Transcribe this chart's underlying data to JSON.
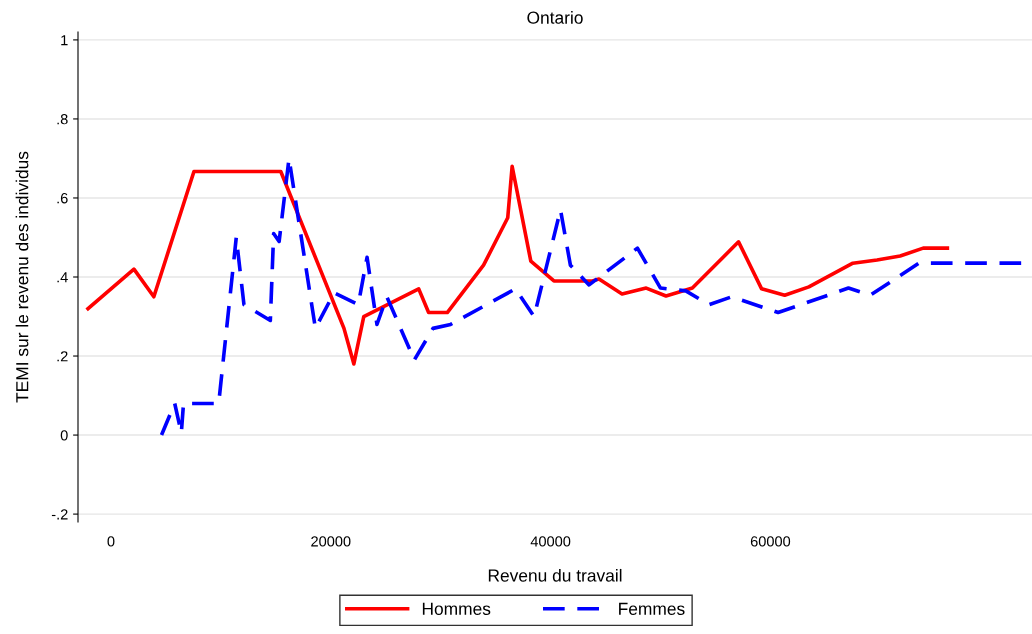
{
  "chart_data": {
    "type": "line",
    "title": "Ontario",
    "xlabel": "Revenu du travail",
    "ylabel": "TEMI sur le revenu des individus",
    "xlim": [
      -3000,
      83800
    ],
    "ylim": [
      -0.22,
      1.02
    ],
    "xticks": [
      0,
      20000,
      40000,
      60000
    ],
    "yticks": [
      {
        "value": -0.2,
        "label": "-.2"
      },
      0,
      {
        "value": 0.2,
        "label": ".2"
      },
      {
        "value": 0.4,
        "label": ".4"
      },
      {
        "value": 0.6,
        "label": ".6"
      },
      {
        "value": 0.8,
        "label": ".8"
      },
      1
    ],
    "grid": "y",
    "legend": "bottom",
    "marker": "none",
    "series": [
      {
        "name": "Hommes",
        "color": "#ff0000",
        "line_style": "solid",
        "x": [
          -2090,
          2090,
          3900,
          7550,
          15450,
          21200,
          22100,
          23000,
          28000,
          28900,
          30600,
          33900,
          36100,
          36500,
          38200,
          40300,
          43800,
          44400,
          46500,
          48700,
          50500,
          52900,
          57100,
          59200,
          61300,
          63500,
          67500,
          69700,
          71800,
          73900,
          76100
        ],
        "values": [
          0.32,
          0.42,
          0.35,
          0.667,
          0.667,
          0.27,
          0.18,
          0.3,
          0.37,
          0.31,
          0.31,
          0.43,
          0.55,
          0.68,
          0.44,
          0.39,
          0.39,
          0.395,
          0.357,
          0.372,
          0.352,
          0.372,
          0.489,
          0.37,
          0.354,
          0.375,
          0.435,
          0.443,
          0.453,
          0.473,
          0.473
        ]
      },
      {
        "name": "Femmes",
        "color": "#0000ff",
        "line_style": "dashed",
        "x": [
          4600,
          5800,
          6400,
          6600,
          9800,
          11400,
          12100,
          14500,
          14800,
          15300,
          16200,
          18600,
          20300,
          22500,
          23300,
          24200,
          25100,
          27600,
          29300,
          30900,
          36800,
          38500,
          40900,
          41800,
          43500,
          47900,
          50000,
          52300,
          54400,
          56500,
          60700,
          67100,
          69100,
          73500,
          83000
        ],
        "values": [
          0,
          0.08,
          0.005,
          0.08,
          0.08,
          0.5,
          0.33,
          0.29,
          0.51,
          0.49,
          0.7,
          0.27,
          0.36,
          0.33,
          0.45,
          0.28,
          0.35,
          0.19,
          0.27,
          0.28,
          0.37,
          0.3,
          0.57,
          0.43,
          0.38,
          0.473,
          0.372,
          0.365,
          0.33,
          0.35,
          0.31,
          0.372,
          0.354,
          0.435,
          0.435
        ]
      }
    ]
  }
}
